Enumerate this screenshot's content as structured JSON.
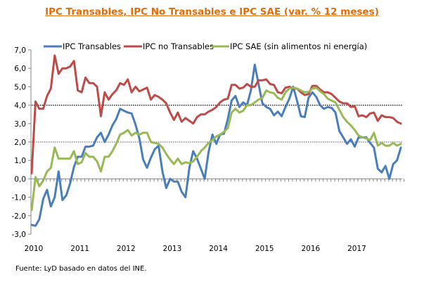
{
  "chart_data": {
    "type": "line",
    "title": "IPC Transables, IPC No Transables  e IPC SAE (var. % 12 meses)",
    "xlabel": "",
    "ylabel": "",
    "ylim": [
      -3,
      7
    ],
    "yticks": [
      "7,0",
      "6,0",
      "5,0",
      "4,0",
      "3,0",
      "2,0",
      "1,0",
      "0,0",
      "-1,0",
      "-2,0",
      "-3,0"
    ],
    "ytick_values": [
      7,
      6,
      5,
      4,
      3,
      2,
      1,
      0,
      -1,
      -2,
      -3
    ],
    "xtick_labels": [
      "2010",
      "2011",
      "2012",
      "2013",
      "2014",
      "2015",
      "2016",
      "2017"
    ],
    "x_unit": "months since Jan 2010",
    "reference_lines": [
      {
        "y": 4.0,
        "style": "dotted",
        "color": "#000000"
      },
      {
        "y": 2.0,
        "style": "dotted",
        "color": "#7F6A9E"
      }
    ],
    "grid": false,
    "legend_position": "top",
    "series": [
      {
        "name": "IPC Transables",
        "color": "#4A7EBB",
        "values": [
          -2.5,
          -2.55,
          -2.2,
          -1.1,
          -0.6,
          -1.5,
          -1.0,
          0.4,
          -1.15,
          -0.9,
          -0.25,
          0.65,
          1.2,
          1.2,
          1.75,
          1.75,
          1.8,
          2.25,
          2.5,
          2.0,
          2.4,
          2.9,
          3.25,
          3.8,
          3.7,
          3.6,
          3.55,
          2.95,
          2.2,
          1.05,
          0.6,
          1.15,
          1.6,
          1.8,
          0.4,
          -0.5,
          0.0,
          -0.15,
          -0.15,
          -0.7,
          -1.0,
          0.6,
          1.5,
          1.1,
          0.55,
          0.0,
          1.45,
          2.4,
          1.9,
          2.4,
          2.45,
          3.25,
          4.25,
          4.5,
          3.9,
          4.15,
          4.0,
          4.8,
          6.2,
          5.15,
          4.1,
          3.9,
          3.8,
          3.45,
          3.65,
          3.4,
          3.9,
          4.35,
          5.0,
          4.25,
          3.4,
          3.35,
          4.4,
          4.7,
          4.45,
          4.0,
          3.8,
          3.9,
          3.85,
          3.6,
          2.6,
          2.25,
          1.9,
          2.15,
          1.75,
          2.25,
          2.25,
          2.25,
          1.95,
          1.7,
          0.55,
          0.35,
          0.7,
          0.0,
          0.8,
          1.0,
          1.7
        ]
      },
      {
        "name": "IPC no Transables",
        "color": "#BE4B48",
        "values": [
          0.3,
          4.2,
          3.8,
          3.8,
          4.5,
          4.9,
          6.7,
          5.7,
          6.0,
          6.0,
          6.1,
          6.4,
          4.8,
          4.7,
          5.5,
          5.2,
          5.2,
          5.0,
          3.4,
          4.7,
          4.3,
          4.6,
          4.8,
          5.2,
          5.1,
          5.4,
          4.7,
          5.0,
          4.75,
          4.85,
          4.95,
          4.3,
          4.55,
          4.45,
          4.3,
          4.1,
          3.6,
          3.2,
          3.6,
          3.1,
          3.3,
          3.15,
          3.0,
          3.35,
          3.5,
          3.5,
          3.65,
          3.75,
          3.9,
          4.15,
          4.3,
          4.35,
          5.1,
          5.1,
          4.9,
          4.95,
          5.15,
          5.0,
          5.0,
          5.35,
          5.35,
          5.4,
          5.15,
          5.1,
          4.7,
          4.65,
          4.95,
          5.0,
          4.9,
          4.9,
          4.7,
          4.55,
          4.6,
          5.05,
          5.05,
          4.85,
          4.7,
          4.7,
          4.6,
          4.4,
          4.2,
          4.1,
          4.1,
          3.9,
          3.95,
          3.4,
          3.45,
          3.35,
          3.55,
          3.6,
          3.15,
          3.45,
          3.35,
          3.35,
          3.3,
          3.1,
          3.0
        ]
      },
      {
        "name": "IPC SAE (sin alimentos ni energía)",
        "color": "#98B954",
        "values": [
          -1.7,
          0.1,
          -0.4,
          -0.1,
          0.4,
          0.6,
          1.7,
          1.1,
          1.1,
          1.1,
          1.1,
          1.5,
          0.8,
          0.9,
          1.4,
          1.2,
          1.2,
          0.95,
          0.4,
          1.2,
          1.2,
          1.5,
          1.9,
          2.4,
          2.5,
          2.65,
          2.35,
          2.5,
          2.4,
          2.5,
          2.5,
          2.0,
          1.95,
          1.9,
          1.7,
          1.35,
          1.05,
          0.8,
          1.1,
          0.8,
          0.9,
          0.85,
          0.95,
          1.2,
          1.5,
          1.7,
          1.95,
          2.1,
          2.3,
          2.4,
          2.55,
          2.75,
          3.6,
          3.8,
          3.6,
          3.7,
          4.0,
          4.0,
          4.15,
          4.3,
          4.4,
          4.8,
          4.7,
          4.65,
          4.4,
          4.3,
          4.7,
          4.9,
          4.95,
          4.9,
          4.8,
          4.7,
          4.72,
          4.9,
          4.95,
          4.75,
          4.6,
          4.35,
          4.25,
          4.15,
          3.75,
          3.35,
          3.1,
          2.9,
          2.65,
          2.35,
          2.25,
          2.2,
          2.1,
          2.5,
          1.8,
          1.95,
          1.8,
          1.8,
          1.95,
          1.8,
          1.9
        ]
      }
    ]
  },
  "footer": {
    "source": "Fuente: LyD basado en datos del INE."
  }
}
